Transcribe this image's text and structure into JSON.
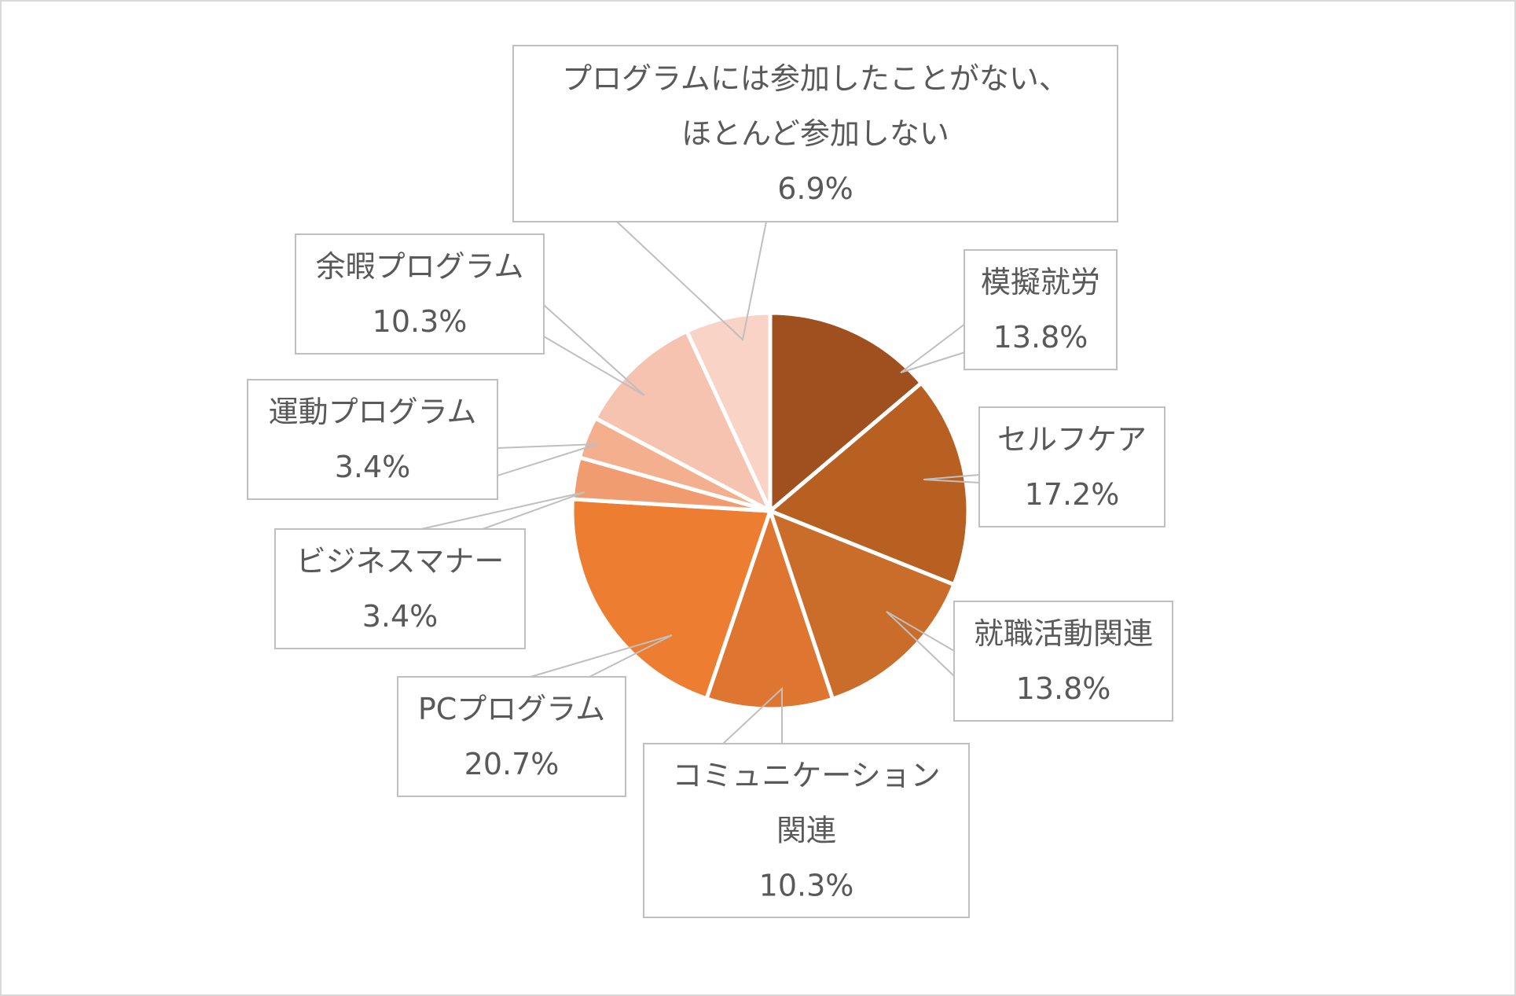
{
  "chart_data": {
    "type": "pie",
    "title": "",
    "start_angle_deg": 0,
    "direction": "clockwise",
    "slices": [
      {
        "label": [
          "模擬就労"
        ],
        "value": 13.8,
        "value_label": "13.8%",
        "color": "#A0501E"
      },
      {
        "label": [
          "セルフケア"
        ],
        "value": 17.2,
        "value_label": "17.2%",
        "color": "#B85F22"
      },
      {
        "label": [
          "就職活動関連"
        ],
        "value": 13.8,
        "value_label": "13.8%",
        "color": "#CA6C2A"
      },
      {
        "label": [
          "コミュニケーション",
          "関連"
        ],
        "value": 10.3,
        "value_label": "10.3%",
        "color": "#DE7530"
      },
      {
        "label": [
          "PCプログラム"
        ],
        "value": 20.7,
        "value_label": "20.7%",
        "color": "#ED7D31"
      },
      {
        "label": [
          "ビジネスマナー"
        ],
        "value": 3.4,
        "value_label": "3.4%",
        "color": "#F19C70"
      },
      {
        "label": [
          "運動プログラム"
        ],
        "value": 3.4,
        "value_label": "3.4%",
        "color": "#F4AF8E"
      },
      {
        "label": [
          "余暇プログラム"
        ],
        "value": 10.3,
        "value_label": "10.3%",
        "color": "#F6C3B0"
      },
      {
        "label": [
          "プログラムには参加したことがない、",
          "ほとんど参加しない"
        ],
        "value": 6.9,
        "value_label": "6.9%",
        "color": "#F8D3C6"
      }
    ]
  }
}
